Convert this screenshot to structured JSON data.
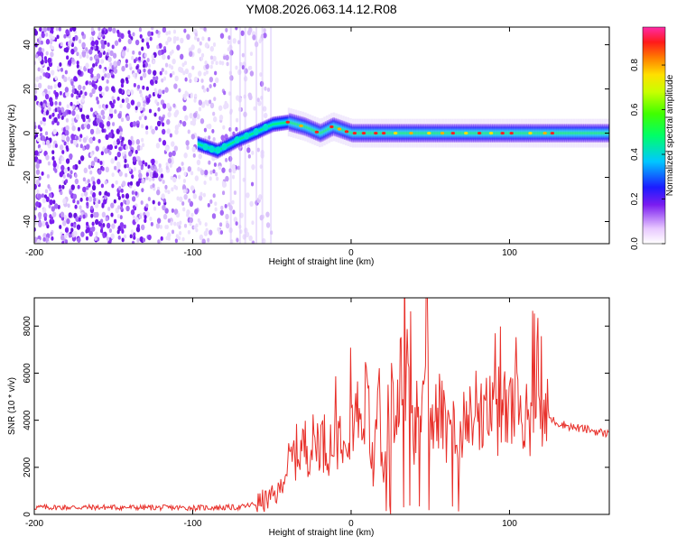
{
  "chart_data": [
    {
      "type": "heatmap",
      "title": "YM08.2026.063.14.12.R08",
      "xlabel": "Height of straight line (km)",
      "ylabel": "Frequency (Hz)",
      "xlim": [
        -200,
        163
      ],
      "ylim": [
        -50,
        48
      ],
      "xticks": [
        -200,
        -100,
        0,
        100
      ],
      "yticks": [
        -40,
        -20,
        0,
        20,
        40
      ],
      "colorbar": {
        "label": "Normalized spectral amplitude",
        "range": [
          0,
          0.97
        ],
        "ticks": [
          0.0,
          0.2,
          0.4,
          0.6,
          0.8
        ]
      },
      "ridge": {
        "note": "centre frequency of the strong band vs height",
        "x": [
          -97,
          -85,
          -72,
          -62,
          -50,
          -40,
          -30,
          -20,
          -12,
          0,
          30,
          60,
          100,
          163
        ],
        "y": [
          -5,
          -8,
          -3,
          0,
          4,
          5,
          3,
          0,
          3,
          0,
          0,
          0,
          0,
          0
        ]
      }
    },
    {
      "type": "line",
      "xlabel": "Height of straight line (km)",
      "ylabel": "SNR (10 * v/v)",
      "xlim": [
        -200,
        163
      ],
      "ylim": [
        0,
        9200
      ],
      "xticks": [
        -200,
        -100,
        0,
        100
      ],
      "yticks": [
        0,
        2000,
        4000,
        6000,
        8000
      ],
      "series": [
        {
          "name": "SNR",
          "color": "#e8302a",
          "x": [
            -200,
            -150,
            -100,
            -70,
            -60,
            -52,
            -46,
            -40,
            -35,
            -30,
            -25,
            -20,
            -15,
            -10,
            -5,
            0,
            5,
            10,
            14,
            17,
            20,
            24,
            28,
            32,
            36,
            40,
            44,
            48,
            52,
            56,
            60,
            65,
            70,
            75,
            80,
            85,
            90,
            95,
            100,
            105,
            110,
            115,
            120,
            125,
            130,
            140,
            150,
            163
          ],
          "y": [
            300,
            300,
            280,
            300,
            450,
            650,
            900,
            2000,
            2600,
            2900,
            2900,
            3300,
            2900,
            3200,
            3700,
            4100,
            4400,
            4900,
            2000,
            5600,
            1200,
            5200,
            3500,
            7400,
            5600,
            3400,
            5200,
            6200,
            4400,
            4500,
            3300,
            3400,
            4000,
            4600,
            3500,
            4200,
            4400,
            4100,
            4600,
            4400,
            3700,
            4500,
            4400,
            4100,
            3900,
            3700,
            3600,
            3400
          ]
        }
      ]
    }
  ]
}
